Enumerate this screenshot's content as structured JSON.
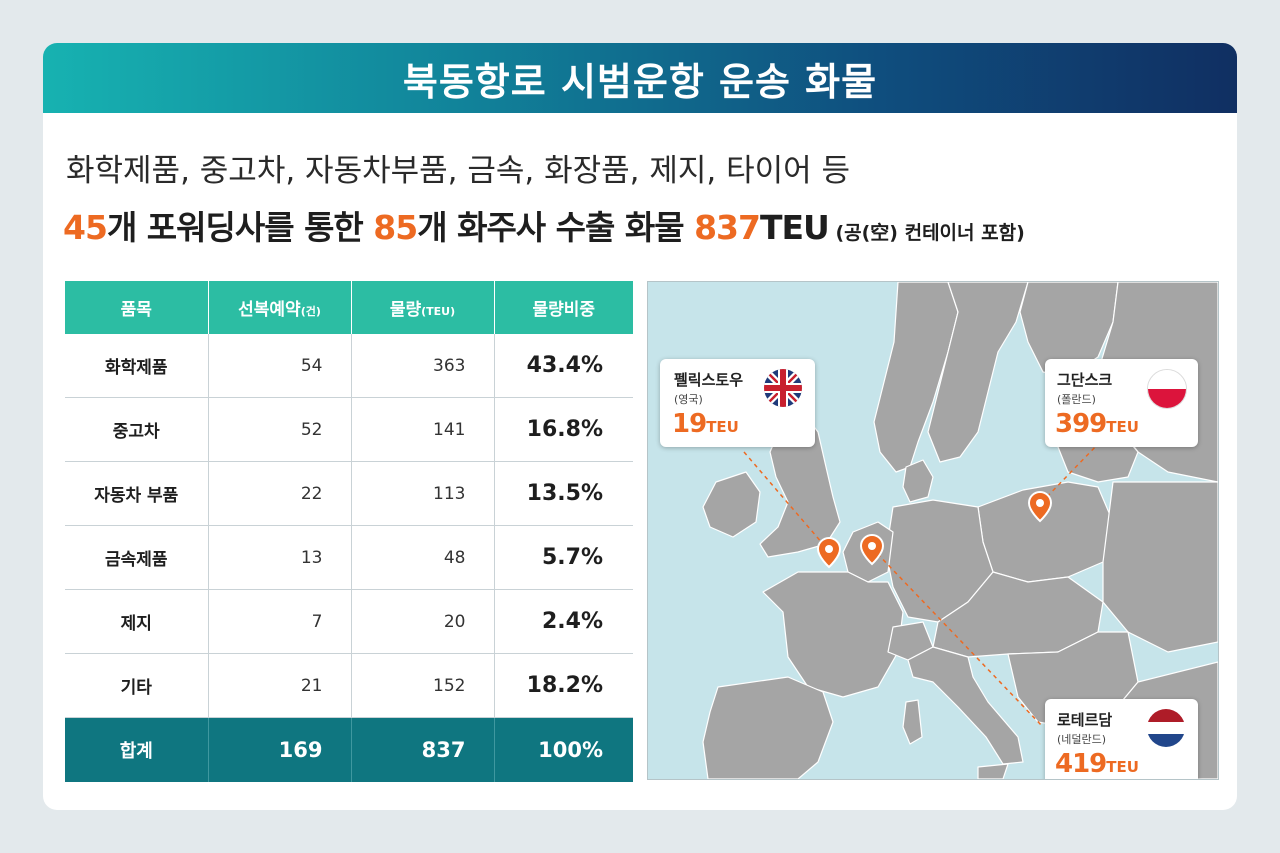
{
  "header": {
    "title": "북동항로 시범운항 운송 화물"
  },
  "summary": {
    "items_line": "화학제품, 중고차, 자동차부품, 금속, 화장품, 제지, 타이어 등",
    "forwarders_count": "45",
    "forwarders_text": "개 포워딩사를 통한 ",
    "shippers_count": "85",
    "shippers_text": "개 화주사 수출 화물 ",
    "teu_total": "837",
    "teu_unit": "TEU",
    "note": " (공(空) 컨테이너 포함)"
  },
  "table": {
    "headers": {
      "category": "품목",
      "booking": "선복예약",
      "booking_unit": "(건)",
      "volume": "물량",
      "volume_unit": "(TEU)",
      "share": "물량비중"
    },
    "rows": [
      {
        "category": "화학제품",
        "booking": "54",
        "volume": "363",
        "share": "43.4%"
      },
      {
        "category": "중고차",
        "booking": "52",
        "volume": "141",
        "share": "16.8%"
      },
      {
        "category": "자동차 부품",
        "booking": "22",
        "volume": "113",
        "share": "13.5%"
      },
      {
        "category": "금속제품",
        "booking": "13",
        "volume": "48",
        "share": "5.7%"
      },
      {
        "category": "제지",
        "booking": "7",
        "volume": "20",
        "share": "2.4%"
      },
      {
        "category": "기타",
        "booking": "21",
        "volume": "152",
        "share": "18.2%"
      }
    ],
    "total": {
      "category": "합계",
      "booking": "169",
      "volume": "837",
      "share": "100%"
    }
  },
  "map": {
    "ports": [
      {
        "city": "펠릭스토우",
        "country": "(영국)",
        "volume": "19",
        "unit": "TEU",
        "flag": "uk-flag"
      },
      {
        "city": "그단스크",
        "country": "(폴란드)",
        "volume": "399",
        "unit": "TEU",
        "flag": "poland-flag"
      },
      {
        "city": "로테르담",
        "country": "(네덜란드)",
        "volume": "419",
        "unit": "TEU",
        "flag": "netherlands-flag"
      }
    ],
    "colors": {
      "sea": "#c6e4ea",
      "land": "#a5a5a5",
      "marker": "#ed6a22"
    }
  },
  "colors": {
    "accent_orange": "#ed6a22",
    "table_header": "#2cbda3",
    "table_total": "#0f7680"
  }
}
